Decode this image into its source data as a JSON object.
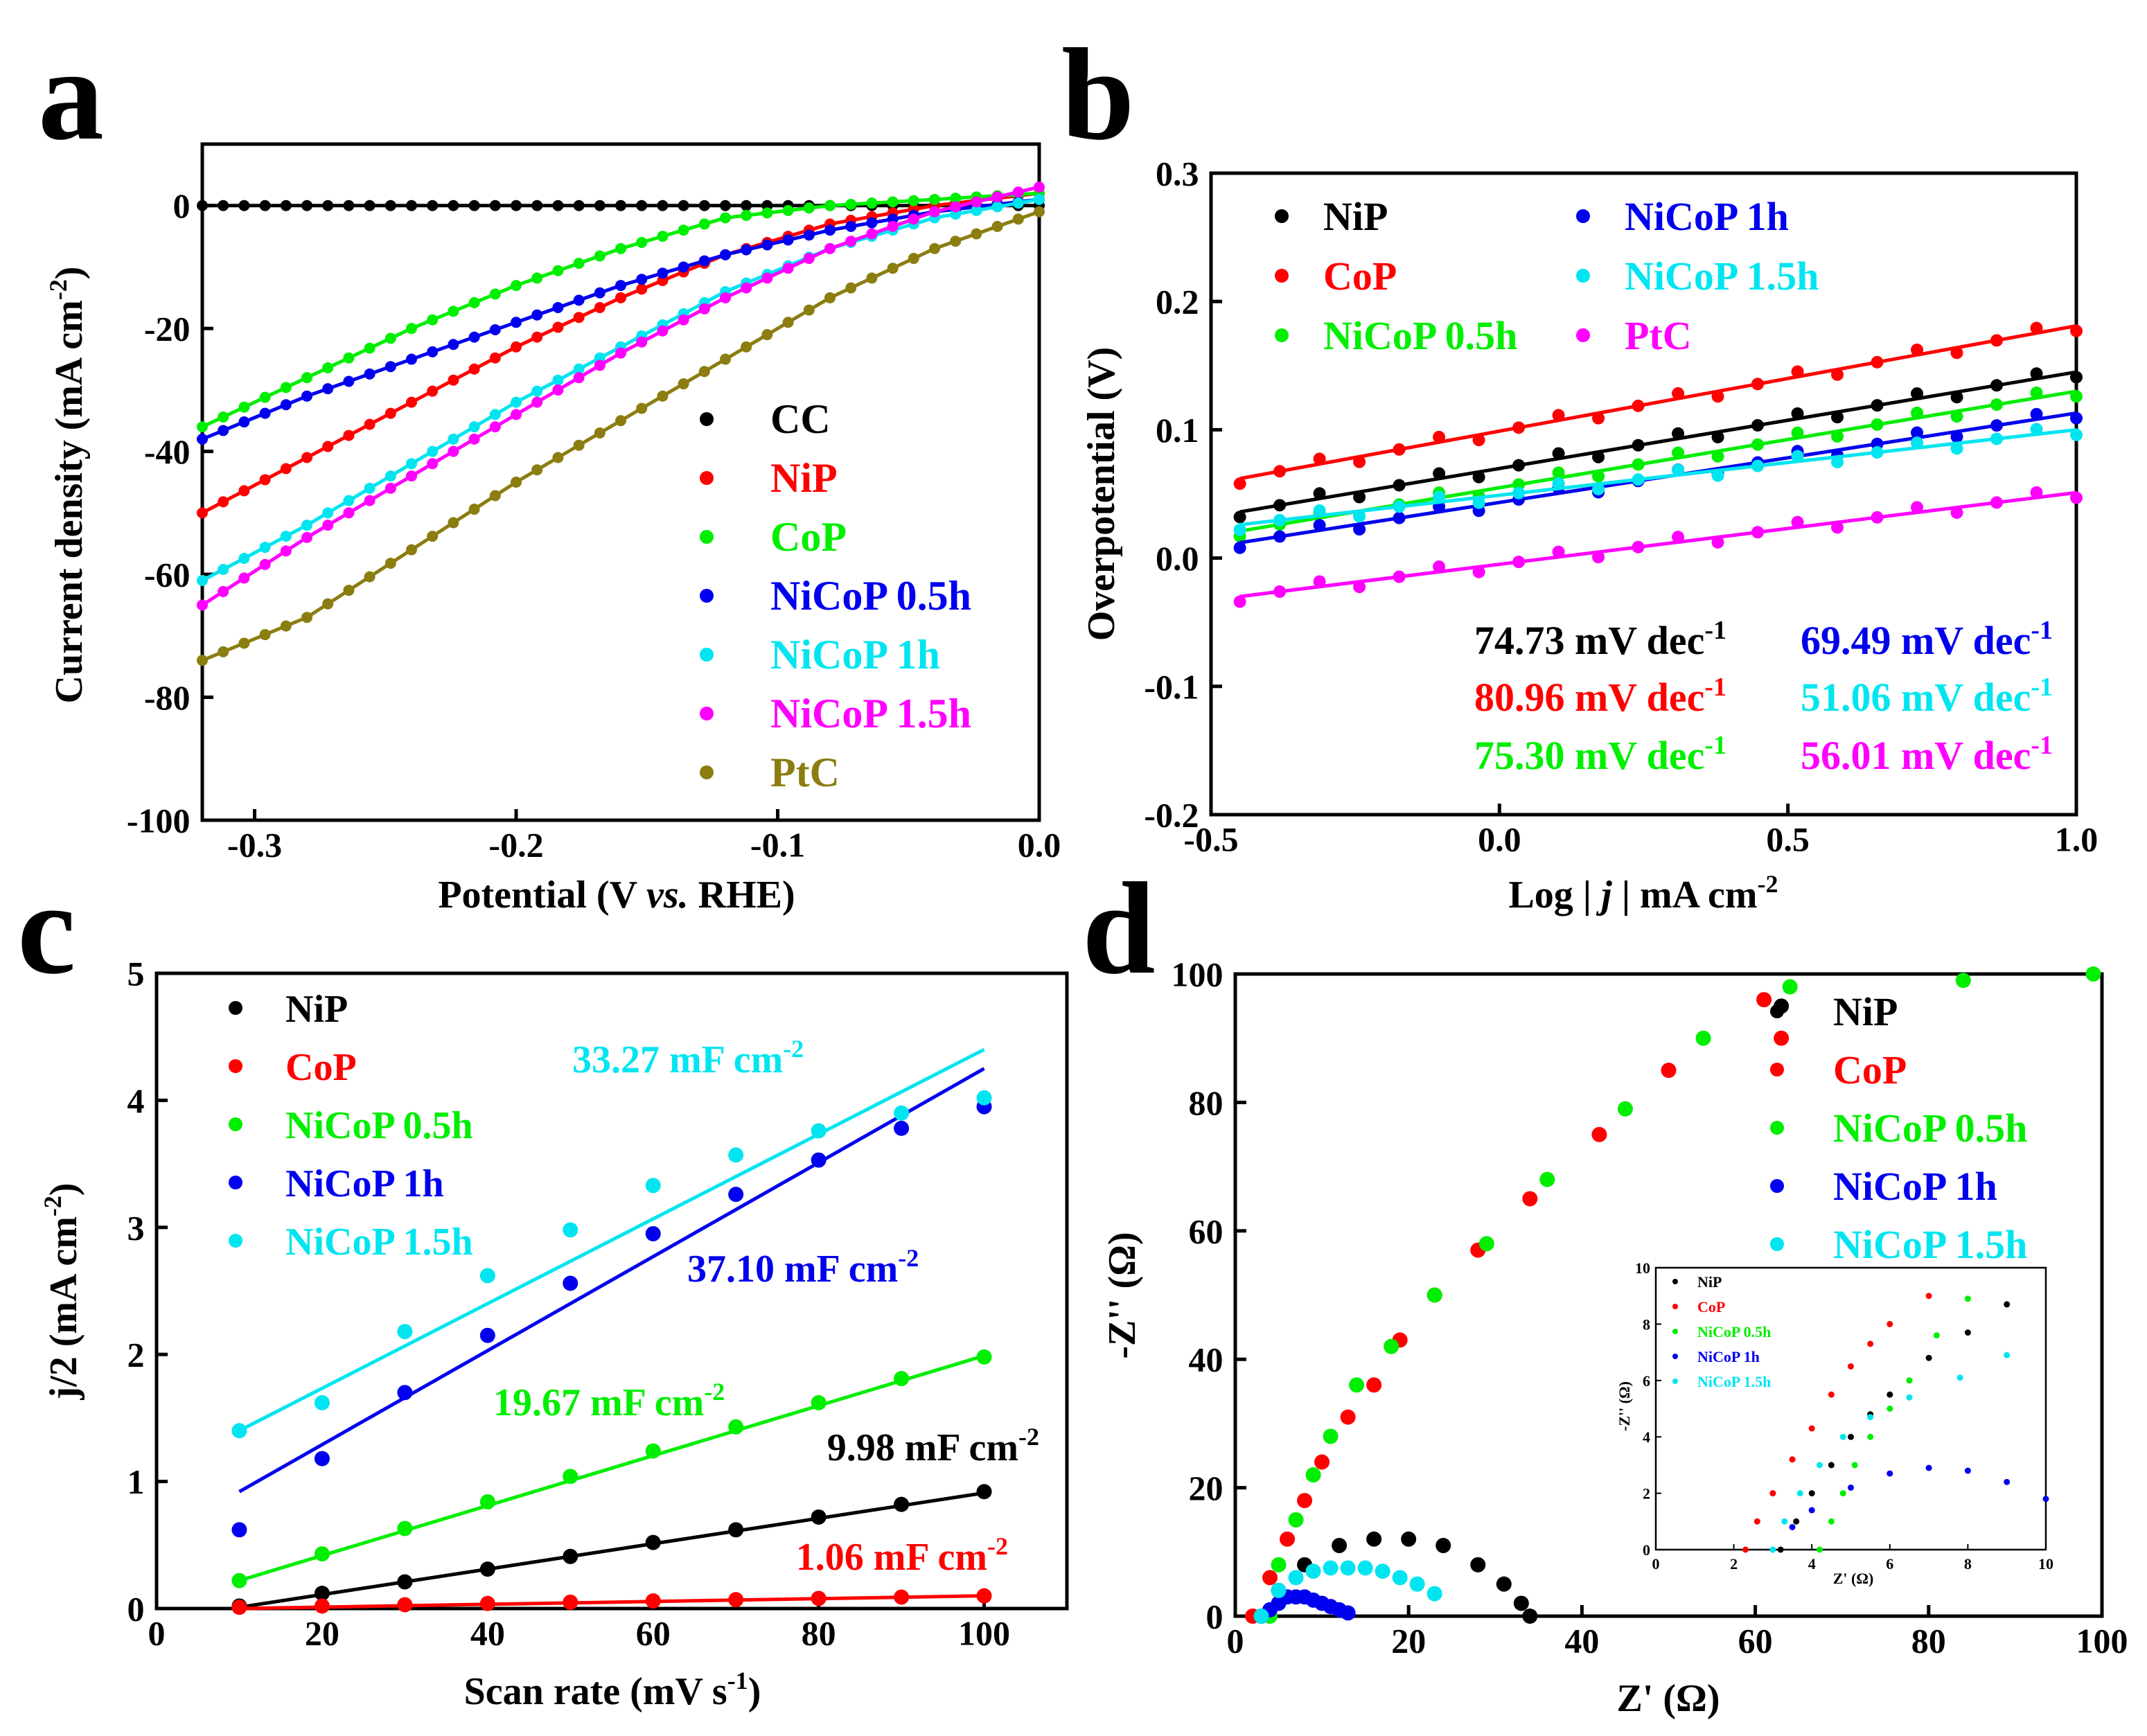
{
  "colors": {
    "CC": "#000000",
    "NiP": "#000000",
    "CoP": "#ff0000",
    "NiCoP 0.5h": "#00ee00",
    "NiCoP 1h": "#0000ee",
    "NiCoP 1.5h": "#00e5f0",
    "PtC": "#ff00ff",
    "PtC_a": "#8b7d10",
    "CoP_a": "#00ee00",
    "NiP_a": "#ff0000",
    "NiCoP 0.5h_a": "#0000ee",
    "NiCoP 1h_a": "#00e5f0",
    "NiCoP 1.5h_a": "#ff00ff",
    "NiCoP 0.5h_b": "#00ee00",
    "NiCoP 1h_b": "#0000ee",
    "NiCoP 1.5h_b": "#00e5f0"
  },
  "chart_data": [
    {
      "id": "a",
      "panel_label": "a",
      "type": "line",
      "xlabel": "Potential (V vs. RHE)",
      "xlabel_main": "Potential (V ",
      "xlabel_ital": "vs.",
      "xlabel_end": " RHE)",
      "ylabel": "Current density (mA cm-2)",
      "ylabel_main": "Current density (mA cm",
      "ylabel_sup": "-2",
      "ylabel_end": ")",
      "xlim": [
        -0.32,
        0.0
      ],
      "ylim": [
        -100,
        10
      ],
      "xticks": [
        -0.3,
        -0.2,
        -0.1,
        0.0
      ],
      "xtick_labels": [
        "-0.3",
        "-0.2",
        "-0.1",
        "0.0"
      ],
      "yticks": [
        0,
        -20,
        -40,
        -60,
        -80,
        -100
      ],
      "ytick_labels": [
        "0",
        "-20",
        "-40",
        "-60",
        "-80",
        "-100"
      ],
      "legend": [
        "CC",
        "NiP",
        "CoP",
        "NiCoP 0.5h",
        "NiCoP 1h",
        "NiCoP 1.5h",
        "PtC"
      ],
      "series": [
        {
          "name": "CC",
          "color_key": "CC",
          "x": [
            -0.32,
            -0.24,
            -0.16,
            -0.08,
            0.0
          ],
          "y": [
            0,
            0,
            0,
            0,
            0
          ]
        },
        {
          "name": "NiP",
          "color_key": "NiP_a",
          "x": [
            -0.32,
            -0.28,
            -0.24,
            -0.2,
            -0.16,
            -0.12,
            -0.08,
            -0.04,
            0.0
          ],
          "y": [
            -50,
            -41,
            -32,
            -23,
            -15,
            -8,
            -3,
            0,
            2
          ]
        },
        {
          "name": "CoP",
          "color_key": "CoP_a",
          "x": [
            -0.32,
            -0.28,
            -0.24,
            -0.2,
            -0.16,
            -0.12,
            -0.08,
            -0.04,
            0.0
          ],
          "y": [
            -36,
            -28,
            -20,
            -13,
            -7,
            -2,
            0,
            1,
            2
          ]
        },
        {
          "name": "NiCoP 0.5h",
          "color_key": "NiCoP 0.5h_a",
          "x": [
            -0.32,
            -0.28,
            -0.24,
            -0.2,
            -0.16,
            -0.12,
            -0.08,
            -0.04,
            0.0
          ],
          "y": [
            -38,
            -31,
            -25,
            -19,
            -13,
            -8,
            -4,
            -1,
            1
          ]
        },
        {
          "name": "NiCoP 1h",
          "color_key": "NiCoP 1h_a",
          "x": [
            -0.32,
            -0.28,
            -0.24,
            -0.2,
            -0.16,
            -0.12,
            -0.08,
            -0.04,
            0.0
          ],
          "y": [
            -61,
            -52,
            -42,
            -32,
            -23,
            -14,
            -7,
            -2,
            1
          ]
        },
        {
          "name": "NiCoP 1.5h",
          "color_key": "NiCoP 1.5h_a",
          "x": [
            -0.32,
            -0.28,
            -0.24,
            -0.2,
            -0.16,
            -0.12,
            -0.08,
            -0.04,
            0.0
          ],
          "y": [
            -65,
            -54,
            -44,
            -34,
            -24,
            -15,
            -7,
            -1,
            3
          ]
        },
        {
          "name": "PtC",
          "color_key": "PtC_a",
          "x": [
            -0.32,
            -0.28,
            -0.24,
            -0.2,
            -0.16,
            -0.12,
            -0.08,
            -0.04,
            0.0
          ],
          "y": [
            -74,
            -67,
            -56,
            -45,
            -35,
            -25,
            -15,
            -7,
            -1
          ]
        }
      ]
    },
    {
      "id": "b",
      "panel_label": "b",
      "type": "scatter",
      "xlabel": "Log | j | mA cm-2",
      "xlabel_main": "Log | ",
      "xlabel_ital": "j",
      "xlabel_end": " | mA cm",
      "xlabel_sup": "-2",
      "ylabel": "Overpotential (V)",
      "xlim": [
        -0.5,
        1.0
      ],
      "ylim": [
        -0.2,
        0.3
      ],
      "xticks": [
        -0.5,
        0.0,
        0.5,
        1.0
      ],
      "xtick_labels": [
        "-0.5",
        "0.0",
        "0.5",
        "1.0"
      ],
      "yticks": [
        0.3,
        0.2,
        0.1,
        0.0,
        -0.1,
        -0.2
      ],
      "ytick_labels": [
        "0.3",
        "0.2",
        "0.1",
        "0.0",
        "-0.1",
        "-0.2"
      ],
      "legend": [
        "NiP",
        "CoP",
        "NiCoP 0.5h",
        "NiCoP 1h",
        "NiCoP 1.5h",
        "PtC"
      ],
      "series": [
        {
          "name": "NiP",
          "color_key": "NiP",
          "x": [
            -0.45,
            1.0
          ],
          "y": [
            0.036,
            0.145
          ],
          "tafel": "74.73 mV dec",
          "tafel_sup": "-1"
        },
        {
          "name": "CoP",
          "color_key": "CoP",
          "x": [
            -0.45,
            1.0
          ],
          "y": [
            0.062,
            0.181
          ],
          "tafel": "80.96 mV dec",
          "tafel_sup": "-1"
        },
        {
          "name": "NiCoP 0.5h",
          "color_key": "NiCoP 0.5h_b",
          "x": [
            -0.45,
            1.0
          ],
          "y": [
            0.021,
            0.13
          ],
          "tafel": "75.30 mV dec",
          "tafel_sup": "-1"
        },
        {
          "name": "NiCoP 1h",
          "color_key": "NiCoP 1h_b",
          "x": [
            -0.45,
            1.0
          ],
          "y": [
            0.012,
            0.113
          ],
          "tafel": "69.49 mV dec",
          "tafel_sup": "-1"
        },
        {
          "name": "NiCoP 1.5h",
          "color_key": "NiCoP 1.5h_b",
          "x": [
            -0.45,
            1.0
          ],
          "y": [
            0.026,
            0.1
          ],
          "tafel": "51.06 mV dec",
          "tafel_sup": "-1"
        },
        {
          "name": "PtC",
          "color_key": "PtC",
          "x": [
            -0.45,
            1.0
          ],
          "y": [
            -0.03,
            0.051
          ],
          "tafel": "56.01 mV dec",
          "tafel_sup": "-1"
        }
      ]
    },
    {
      "id": "c",
      "panel_label": "c",
      "type": "scatter",
      "xlabel": "Scan rate (mV s-1)",
      "xlabel_main": "Scan rate (mV s",
      "xlabel_sup": "-1",
      "xlabel_end": ")",
      "ylabel": "j/2 (mA cm-2)",
      "ylabel_main": "j/2 (mA cm",
      "ylabel_sup": "-2",
      "ylabel_end": ")",
      "xlim": [
        0,
        110
      ],
      "ylim": [
        0,
        5
      ],
      "xticks": [
        0,
        20,
        40,
        60,
        80,
        100
      ],
      "xtick_labels": [
        "0",
        "20",
        "40",
        "60",
        "80",
        "100"
      ],
      "yticks": [
        0,
        1,
        2,
        3,
        4,
        5
      ],
      "ytick_labels": [
        "0",
        "1",
        "2",
        "3",
        "4",
        "5"
      ],
      "legend": [
        "NiP",
        "CoP",
        "NiCoP 0.5h",
        "NiCoP 1h",
        "NiCoP 1.5h"
      ],
      "x": [
        10,
        20,
        30,
        40,
        50,
        60,
        70,
        80,
        90,
        100
      ],
      "series": [
        {
          "name": "NiP",
          "color_key": "NiP",
          "y": [
            0.02,
            0.12,
            0.21,
            0.31,
            0.41,
            0.52,
            0.62,
            0.72,
            0.82,
            0.92
          ],
          "fit": [
            0.01,
            0.91
          ],
          "cdl": "9.98 mF cm",
          "cdl_sup": "-2"
        },
        {
          "name": "CoP",
          "color_key": "CoP",
          "y": [
            0.01,
            0.02,
            0.03,
            0.04,
            0.05,
            0.06,
            0.07,
            0.08,
            0.09,
            0.1
          ],
          "fit": [
            0.0,
            0.1
          ],
          "cdl": "1.06 mF cm",
          "cdl_sup": "-2"
        },
        {
          "name": "NiCoP 0.5h",
          "color_key": "NiCoP 0.5h_b",
          "y": [
            0.22,
            0.43,
            0.63,
            0.84,
            1.04,
            1.24,
            1.43,
            1.62,
            1.81,
            1.98
          ],
          "fit": [
            0.22,
            1.99
          ],
          "cdl": "19.67 mF cm",
          "cdl_sup": "-2"
        },
        {
          "name": "NiCoP 1h",
          "color_key": "NiCoP 1h_b",
          "y": [
            0.62,
            1.18,
            1.7,
            2.15,
            2.56,
            2.95,
            3.26,
            3.53,
            3.78,
            3.95
          ],
          "fit": [
            0.92,
            4.25
          ],
          "cdl": "37.10 mF cm",
          "cdl_sup": "-2"
        },
        {
          "name": "NiCoP 1.5h",
          "color_key": "NiCoP 1.5h_b",
          "y": [
            1.4,
            1.62,
            2.18,
            2.62,
            2.98,
            3.33,
            3.57,
            3.76,
            3.9,
            4.02
          ],
          "fit": [
            1.4,
            4.4
          ],
          "cdl": "33.27 mF cm",
          "cdl_sup": "-2"
        }
      ]
    },
    {
      "id": "d",
      "panel_label": "d",
      "type": "scatter",
      "xlabel": "Z' (Ω)",
      "ylabel": "-Z'' (Ω)",
      "xlim": [
        0,
        100
      ],
      "ylim": [
        0,
        100
      ],
      "xticks": [
        0,
        20,
        40,
        60,
        80,
        100
      ],
      "xtick_labels": [
        "0",
        "20",
        "40",
        "60",
        "80",
        "100"
      ],
      "yticks": [
        0,
        20,
        40,
        60,
        80,
        100
      ],
      "ytick_labels": [
        "0",
        "20",
        "40",
        "60",
        "80",
        "100"
      ],
      "legend": [
        "NiP",
        "CoP",
        "NiCoP 0.5h",
        "NiCoP 1h",
        "NiCoP 1.5h"
      ],
      "series": [
        {
          "name": "NiP",
          "color_key": "NiP",
          "x": [
            3,
            5,
            8,
            12,
            16,
            20,
            24,
            28,
            31,
            33,
            34,
            63
          ],
          "y": [
            0,
            4,
            8,
            11,
            12,
            12,
            11,
            8,
            5,
            2,
            0,
            95
          ]
        },
        {
          "name": "CoP",
          "color_key": "CoP",
          "x": [
            2,
            4,
            6,
            8,
            10,
            13,
            16,
            19,
            23,
            28,
            34,
            42,
            50,
            61,
            63
          ],
          "y": [
            0,
            6,
            12,
            18,
            24,
            31,
            36,
            43,
            50,
            57,
            65,
            75,
            85,
            96,
            90
          ]
        },
        {
          "name": "NiCoP 0.5h",
          "color_key": "NiCoP 0.5h_b",
          "x": [
            4,
            5,
            7,
            9,
            11,
            14,
            18,
            23,
            29,
            36,
            45,
            54,
            64,
            84,
            99
          ],
          "y": [
            0,
            8,
            15,
            22,
            28,
            36,
            42,
            50,
            58,
            68,
            79,
            90,
            98,
            99,
            100
          ]
        },
        {
          "name": "NiCoP 1h",
          "color_key": "NiCoP 1h_b",
          "x": [
            3,
            4,
            5,
            6,
            7,
            8,
            9,
            10,
            11,
            12,
            13
          ],
          "y": [
            0,
            1,
            2,
            3,
            3,
            3,
            2.5,
            2,
            1.5,
            1,
            0.5
          ]
        },
        {
          "name": "NiCoP 1.5h",
          "color_key": "NiCoP 1.5h_b",
          "x": [
            3,
            5,
            7,
            9,
            11,
            13,
            15,
            17,
            19,
            21,
            23
          ],
          "y": [
            0,
            4,
            6,
            7,
            7.5,
            7.5,
            7.5,
            7,
            6,
            5,
            3.5
          ]
        }
      ],
      "inset": {
        "xlabel": "Z' (Ω)",
        "ylabel": "-Z'' (Ω)",
        "xlim": [
          0,
          10
        ],
        "ylim": [
          0,
          10
        ],
        "xticks": [
          0,
          2,
          4,
          6,
          8,
          10
        ],
        "xtick_labels": [
          "0",
          "2",
          "4",
          "6",
          "8",
          "10"
        ],
        "yticks": [
          0,
          2,
          4,
          6,
          8,
          10
        ],
        "ytick_labels": [
          "0",
          "2",
          "4",
          "6",
          "8",
          "10"
        ],
        "legend": [
          "NiP",
          "CoP",
          "NiCoP 0.5h",
          "NiCoP 1h",
          "NiCoP 1.5h"
        ],
        "series": [
          {
            "name": "NiP",
            "color_key": "NiP",
            "x": [
              3.2,
              3.6,
              4.0,
              4.5,
              5.0,
              5.5,
              6.0,
              7.0,
              8.0,
              9.0
            ],
            "y": [
              0,
              1.0,
              2.0,
              3.0,
              4.0,
              4.8,
              5.5,
              6.8,
              7.7,
              8.7
            ]
          },
          {
            "name": "CoP",
            "color_key": "CoP",
            "x": [
              2.3,
              2.6,
              3.0,
              3.5,
              4.0,
              4.5,
              5.0,
              5.5,
              6.0,
              7.0
            ],
            "y": [
              0,
              1.0,
              2.0,
              3.2,
              4.3,
              5.5,
              6.5,
              7.3,
              8.0,
              9.0
            ]
          },
          {
            "name": "NiCoP 0.5h",
            "color_key": "NiCoP 0.5h_b",
            "x": [
              4.2,
              4.5,
              4.8,
              5.1,
              5.5,
              6.0,
              6.5,
              7.2,
              8.0
            ],
            "y": [
              0,
              1.0,
              2.0,
              3.0,
              4.0,
              5.0,
              6.0,
              7.6,
              8.9
            ]
          },
          {
            "name": "NiCoP 1h",
            "color_key": "NiCoP 1h_b",
            "x": [
              3.0,
              3.5,
              4.0,
              5.0,
              6.0,
              7.0,
              8.0,
              9.0,
              10.0
            ],
            "y": [
              0,
              0.8,
              1.4,
              2.2,
              2.7,
              2.9,
              2.8,
              2.4,
              1.8
            ]
          },
          {
            "name": "NiCoP 1.5h",
            "color_key": "NiCoP 1.5h_b",
            "x": [
              3.0,
              3.3,
              3.7,
              4.2,
              4.8,
              5.5,
              6.5,
              7.8,
              9.0
            ],
            "y": [
              0,
              1.0,
              2.0,
              3.0,
              4.0,
              4.7,
              5.4,
              6.1,
              6.9
            ]
          }
        ]
      }
    }
  ]
}
